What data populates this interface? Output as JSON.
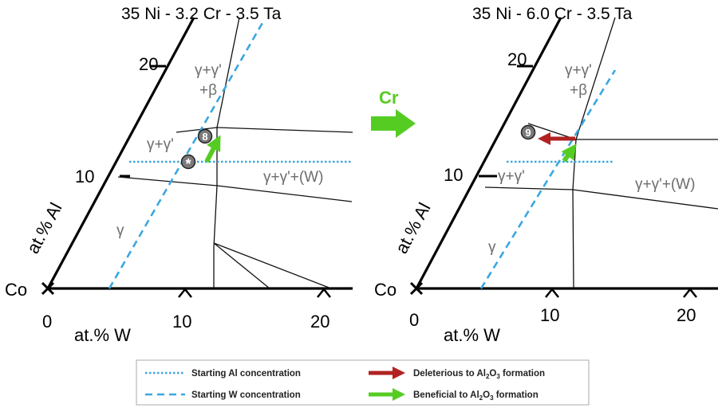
{
  "left_panel": {
    "title": "35 Ni - 3.2 Cr - 3.5 Ta",
    "tick_20_al": "20",
    "tick_10_al": "10",
    "axis_al": "at.% Al",
    "origin": "Co",
    "tick_0_w": "0",
    "tick_10_w": "10",
    "tick_20_w": "20",
    "axis_w": "at.% W",
    "phase_gg_beta_1": "γ+γ'",
    "phase_gg_beta_2": "+β",
    "phase_gg": "γ+γ'",
    "phase_ggw": "γ+γ'+(W)",
    "phase_g": "γ",
    "marker_8": "8",
    "marker_star": "*"
  },
  "middle": {
    "arrow_label": "Cr",
    "arrow_color": "#55cc22"
  },
  "right_panel": {
    "title": "35 Ni - 6.0 Cr - 3.5 Ta",
    "tick_20_al": "20",
    "tick_10_al": "10",
    "axis_al": "at.% Al",
    "origin": "Co",
    "tick_0_w": "0",
    "tick_10_w": "10",
    "tick_20_w": "20",
    "axis_w": "at.% W",
    "phase_gg_beta_1": "γ+γ'",
    "phase_gg_beta_2": "+β",
    "phase_gg": "γ+γ'",
    "phase_ggw": "γ+γ'+(W)",
    "phase_g": "γ",
    "marker_9": "9"
  },
  "legend": {
    "dotted_label": "Starting Al concentration",
    "dashed_label": "Starting W concentration",
    "red_label_pre": "Deleterious to Al",
    "red_label_post": " formation",
    "green_label_pre": "Beneficial to Al",
    "green_label_post": " formation",
    "sub_2": "2",
    "sub_3": "3",
    "line_color": "#3aa7e0",
    "red_color": "#b22222",
    "green_color": "#55cc22"
  }
}
